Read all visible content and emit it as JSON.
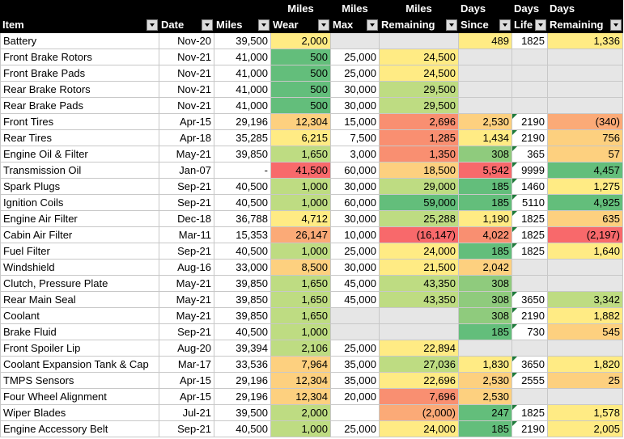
{
  "header": {
    "row1": [
      "",
      "",
      "",
      "Miles",
      "Miles",
      "Miles",
      "Days",
      "Days",
      "Days"
    ],
    "row2": [
      "Item",
      "Date",
      "Miles",
      "Wear",
      "Max",
      "Remaining",
      "Since",
      "Life",
      "Remaining"
    ]
  },
  "rows": [
    {
      "item": "Battery",
      "date": "Nov-20",
      "miles": "39,500",
      "wear": "2,000",
      "max": "",
      "remaining": "",
      "since": "489",
      "life": "1825",
      "days_remaining": "1,336"
    },
    {
      "item": "Front Brake Rotors",
      "date": "Nov-21",
      "miles": "41,000",
      "wear": "500",
      "max": "25,000",
      "remaining": "24,500",
      "since": "",
      "life": "",
      "days_remaining": ""
    },
    {
      "item": "Front Brake Pads",
      "date": "Nov-21",
      "miles": "41,000",
      "wear": "500",
      "max": "25,000",
      "remaining": "24,500",
      "since": "",
      "life": "",
      "days_remaining": ""
    },
    {
      "item": "Rear Brake Rotors",
      "date": "Nov-21",
      "miles": "41,000",
      "wear": "500",
      "max": "30,000",
      "remaining": "29,500",
      "since": "",
      "life": "",
      "days_remaining": ""
    },
    {
      "item": "Rear Brake Pads",
      "date": "Nov-21",
      "miles": "41,000",
      "wear": "500",
      "max": "30,000",
      "remaining": "29,500",
      "since": "",
      "life": "",
      "days_remaining": ""
    },
    {
      "item": "Front Tires",
      "date": "Apr-15",
      "miles": "29,196",
      "wear": "12,304",
      "max": "15,000",
      "remaining": "2,696",
      "since": "2,530",
      "life": "2190",
      "days_remaining": "(340)"
    },
    {
      "item": "Rear Tires",
      "date": "Apr-18",
      "miles": "35,285",
      "wear": "6,215",
      "max": "7,500",
      "remaining": "1,285",
      "since": "1,434",
      "life": "2190",
      "days_remaining": "756"
    },
    {
      "item": "Engine Oil & Filter",
      "date": "May-21",
      "miles": "39,850",
      "wear": "1,650",
      "max": "3,000",
      "remaining": "1,350",
      "since": "308",
      "life": "365",
      "days_remaining": "57"
    },
    {
      "item": "Transmission Oil",
      "date": "Jan-07",
      "miles": "-",
      "wear": "41,500",
      "max": "60,000",
      "remaining": "18,500",
      "since": "5,542",
      "life": "9999",
      "days_remaining": "4,457"
    },
    {
      "item": "Spark Plugs",
      "date": "Sep-21",
      "miles": "40,500",
      "wear": "1,000",
      "max": "30,000",
      "remaining": "29,000",
      "since": "185",
      "life": "1460",
      "days_remaining": "1,275"
    },
    {
      "item": "Ignition Coils",
      "date": "Sep-21",
      "miles": "40,500",
      "wear": "1,000",
      "max": "60,000",
      "remaining": "59,000",
      "since": "185",
      "life": "5110",
      "days_remaining": "4,925"
    },
    {
      "item": "Engine Air Filter",
      "date": "Dec-18",
      "miles": "36,788",
      "wear": "4,712",
      "max": "30,000",
      "remaining": "25,288",
      "since": "1,190",
      "life": "1825",
      "days_remaining": "635"
    },
    {
      "item": "Cabin Air Filter",
      "date": "Mar-11",
      "miles": "15,353",
      "wear": "26,147",
      "max": "10,000",
      "remaining": "(16,147)",
      "since": "4,022",
      "life": "1825",
      "days_remaining": "(2,197)"
    },
    {
      "item": "Fuel Filter",
      "date": "Sep-21",
      "miles": "40,500",
      "wear": "1,000",
      "max": "25,000",
      "remaining": "24,000",
      "since": "185",
      "life": "1825",
      "days_remaining": "1,640"
    },
    {
      "item": "Windshield",
      "date": "Aug-16",
      "miles": "33,000",
      "wear": "8,500",
      "max": "30,000",
      "remaining": "21,500",
      "since": "2,042",
      "life": "",
      "days_remaining": ""
    },
    {
      "item": "Clutch, Pressure Plate",
      "date": "May-21",
      "miles": "39,850",
      "wear": "1,650",
      "max": "45,000",
      "remaining": "43,350",
      "since": "308",
      "life": "",
      "days_remaining": ""
    },
    {
      "item": "Rear Main Seal",
      "date": "May-21",
      "miles": "39,850",
      "wear": "1,650",
      "max": "45,000",
      "remaining": "43,350",
      "since": "308",
      "life": "3650",
      "days_remaining": "3,342"
    },
    {
      "item": "Coolant",
      "date": "May-21",
      "miles": "39,850",
      "wear": "1,650",
      "max": "",
      "remaining": "",
      "since": "308",
      "life": "2190",
      "days_remaining": "1,882"
    },
    {
      "item": "Brake Fluid",
      "date": "Sep-21",
      "miles": "40,500",
      "wear": "1,000",
      "max": "",
      "remaining": "",
      "since": "185",
      "life": "730",
      "days_remaining": "545"
    },
    {
      "item": "Front Spoiler Lip",
      "date": "Aug-20",
      "miles": "39,394",
      "wear": "2,106",
      "max": "25,000",
      "remaining": "22,894",
      "since": "",
      "life": "",
      "days_remaining": ""
    },
    {
      "item": "Coolant Expansion Tank & Cap",
      "date": "Mar-17",
      "miles": "33,536",
      "wear": "7,964",
      "max": "35,000",
      "remaining": "27,036",
      "since": "1,830",
      "life": "3650",
      "days_remaining": "1,820"
    },
    {
      "item": "TMPS Sensors",
      "date": "Apr-15",
      "miles": "29,196",
      "wear": "12,304",
      "max": "35,000",
      "remaining": "22,696",
      "since": "2,530",
      "life": "2555",
      "days_remaining": "25"
    },
    {
      "item": "Four Wheel Alignment",
      "date": "Apr-15",
      "miles": "29,196",
      "wear": "12,304",
      "max": "20,000",
      "remaining": "7,696",
      "since": "2,530",
      "life": "",
      "days_remaining": ""
    },
    {
      "item": "Wiper Blades",
      "date": "Jul-21",
      "miles": "39,500",
      "wear": "2,000",
      "max": "",
      "remaining": "(2,000)",
      "since": "247",
      "life": "1825",
      "days_remaining": "1,578"
    },
    {
      "item": "Engine Accessory Belt",
      "date": "Sep-21",
      "miles": "40,500",
      "wear": "1,000",
      "max": "25,000",
      "remaining": "24,000",
      "since": "185",
      "life": "2190",
      "days_remaining": "2,005"
    }
  ],
  "colors": {
    "header_bg": "#000000",
    "header_text": "#ffffff",
    "empty_grey": "#e6e6e6",
    "deep_green": "#63be7b",
    "green": "#8fcb7d",
    "light_green": "#bedc82",
    "yellow": "#ffeb84",
    "light_orange": "#fdd07f",
    "orange": "#fbaa77",
    "deep_orange": "#f98f71",
    "red": "#f8696b",
    "comment_marker": "#1e7b3a"
  }
}
